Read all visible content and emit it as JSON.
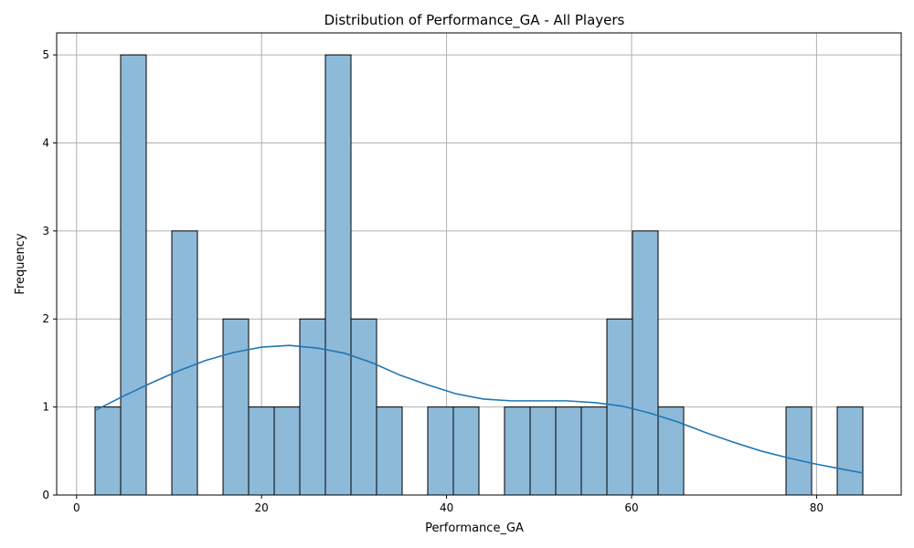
{
  "chart_data": {
    "type": "bar",
    "subtype": "histogram",
    "title": "Distribution of Performance_GA - All Players",
    "xlabel": "Performance_GA",
    "ylabel": "Frequency",
    "xlim": [
      -2.15,
      89.15
    ],
    "ylim": [
      0,
      5.25
    ],
    "xticks": [
      0,
      20,
      40,
      60,
      80
    ],
    "yticks": [
      0,
      1,
      2,
      3,
      4,
      5
    ],
    "grid": true,
    "bin_start": 2,
    "bin_width": 2.7667,
    "bin_counts": [
      1,
      5,
      0,
      3,
      0,
      2,
      1,
      1,
      2,
      5,
      2,
      1,
      0,
      1,
      1,
      0,
      1,
      1,
      1,
      1,
      2,
      3,
      1,
      0,
      0,
      0,
      0,
      1,
      0,
      1
    ],
    "kde": {
      "x": [
        2,
        5,
        8,
        11,
        14,
        17,
        20,
        23,
        26,
        29,
        32,
        35,
        38,
        41,
        44,
        47,
        50,
        53,
        56,
        59,
        62,
        65,
        68,
        71,
        74,
        77,
        80,
        83,
        85
      ],
      "y": [
        0.96,
        1.12,
        1.27,
        1.41,
        1.53,
        1.62,
        1.68,
        1.7,
        1.67,
        1.61,
        1.5,
        1.36,
        1.25,
        1.15,
        1.09,
        1.07,
        1.07,
        1.07,
        1.05,
        1.01,
        0.93,
        0.83,
        0.71,
        0.6,
        0.5,
        0.42,
        0.35,
        0.29,
        0.25
      ]
    },
    "colors": {
      "bar_fill": "#8ebad9",
      "bar_edge": "#000000",
      "kde_line": "#1f77b4",
      "grid": "#b0b0b0"
    }
  }
}
